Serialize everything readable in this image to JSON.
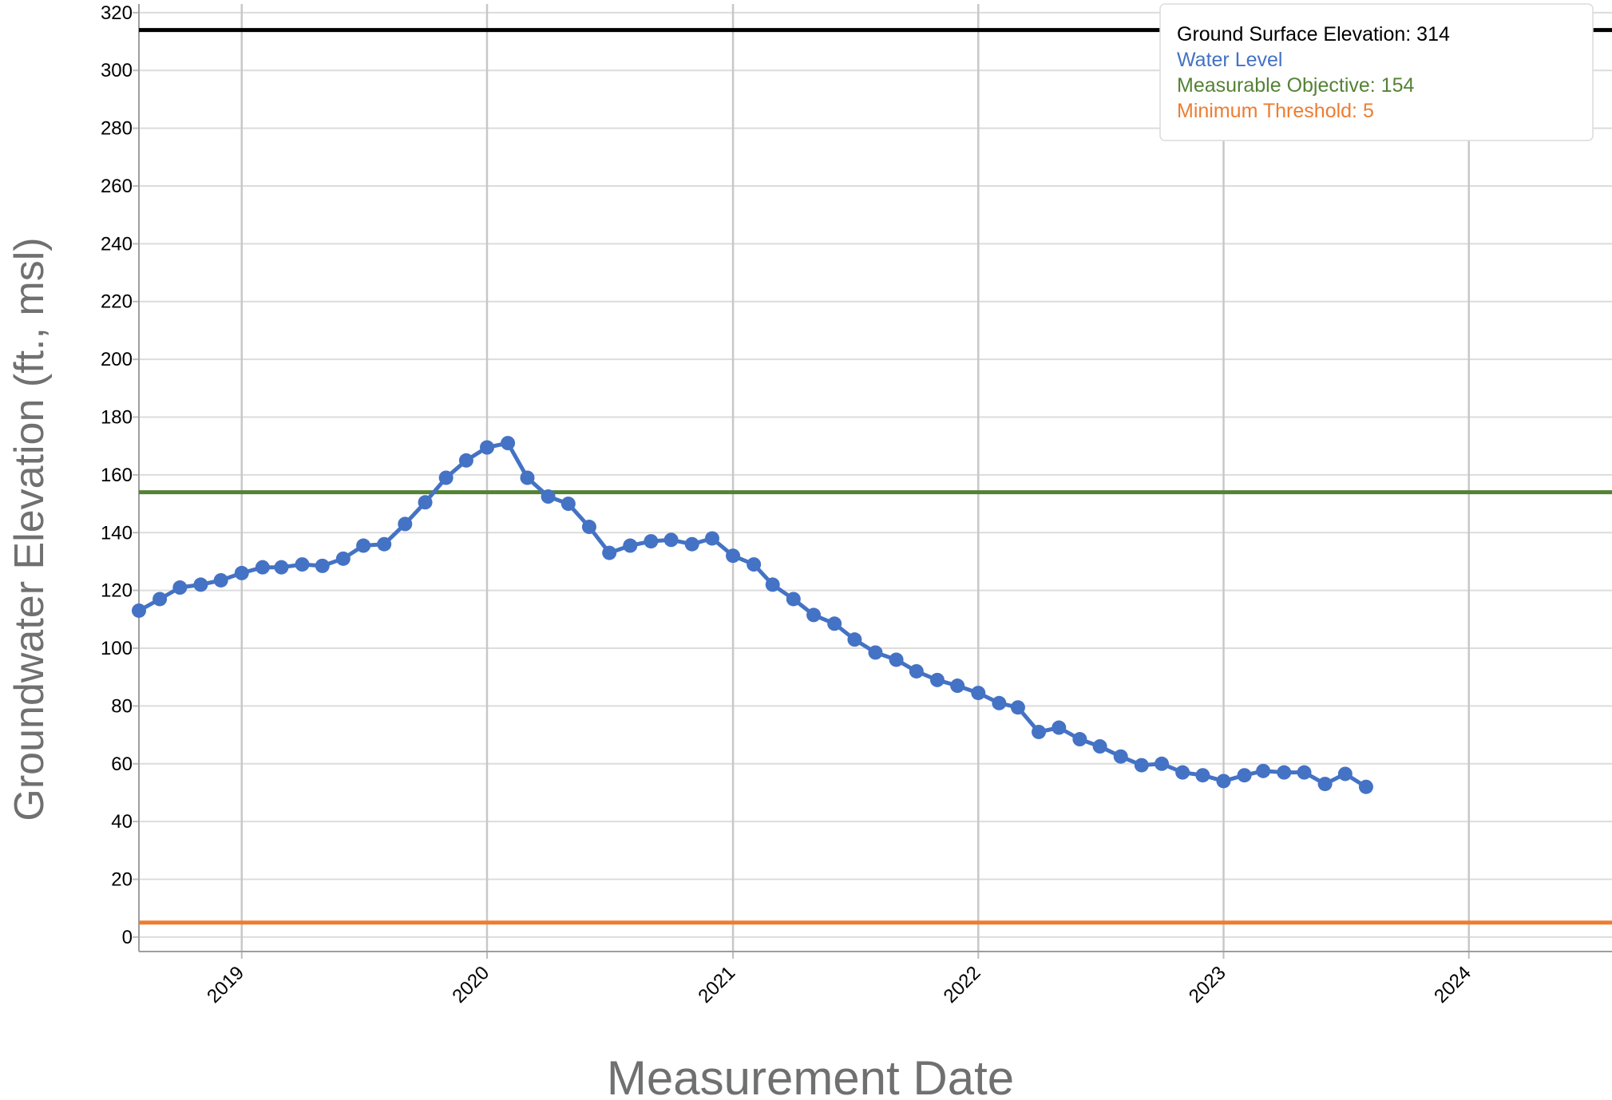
{
  "chart_data": {
    "type": "line",
    "title": "",
    "xlabel": "Measurement Date",
    "ylabel": "Groundwater Elevation (ft., msl)",
    "x_range": [
      "2018-08-01",
      "2024-08-01"
    ],
    "ylim": [
      -5,
      323
    ],
    "x_ticks": [
      {
        "date": "2019-01-01",
        "label": "2019"
      },
      {
        "date": "2020-01-01",
        "label": "2020"
      },
      {
        "date": "2021-01-01",
        "label": "2021"
      },
      {
        "date": "2022-01-01",
        "label": "2022"
      },
      {
        "date": "2023-01-01",
        "label": "2023"
      },
      {
        "date": "2024-01-01",
        "label": "2024"
      }
    ],
    "y_ticks": [
      0,
      20,
      40,
      60,
      80,
      100,
      120,
      140,
      160,
      180,
      200,
      220,
      240,
      260,
      280,
      300,
      320
    ],
    "grid": true,
    "legend_position": "top-right",
    "legend": [
      {
        "label": "Ground Surface Elevation: 314",
        "color": "#000000"
      },
      {
        "label": "Water Level",
        "color": "#4472c4"
      },
      {
        "label": "Measurable Objective: 154",
        "color": "#548235"
      },
      {
        "label": "Minimum Threshold: 5",
        "color": "#ed7d31"
      }
    ],
    "reference_lines": [
      {
        "label": "Ground Surface Elevation",
        "value": 314,
        "color": "#000000"
      },
      {
        "label": "Measurable Objective",
        "value": 154,
        "color": "#548235"
      },
      {
        "label": "Minimum Threshold",
        "value": 5,
        "color": "#ed7d31"
      }
    ],
    "series": [
      {
        "name": "Water Level",
        "color": "#4472c4",
        "points": [
          [
            "2018-08-01",
            113
          ],
          [
            "2018-09-01",
            117
          ],
          [
            "2018-10-01",
            121
          ],
          [
            "2018-11-01",
            122
          ],
          [
            "2018-12-01",
            123.5
          ],
          [
            "2019-01-01",
            126
          ],
          [
            "2019-02-01",
            128
          ],
          [
            "2019-03-01",
            128
          ],
          [
            "2019-04-01",
            129
          ],
          [
            "2019-05-01",
            128.5
          ],
          [
            "2019-06-01",
            131
          ],
          [
            "2019-07-01",
            135.5
          ],
          [
            "2019-08-01",
            136
          ],
          [
            "2019-09-01",
            143
          ],
          [
            "2019-10-01",
            150.5
          ],
          [
            "2019-11-01",
            159
          ],
          [
            "2019-12-01",
            165
          ],
          [
            "2020-01-01",
            169.5
          ],
          [
            "2020-02-01",
            171
          ],
          [
            "2020-03-01",
            159
          ],
          [
            "2020-04-01",
            152.5
          ],
          [
            "2020-05-01",
            150
          ],
          [
            "2020-06-01",
            142
          ],
          [
            "2020-07-01",
            133
          ],
          [
            "2020-08-01",
            135.5
          ],
          [
            "2020-09-01",
            137
          ],
          [
            "2020-10-01",
            137.5
          ],
          [
            "2020-11-01",
            136
          ],
          [
            "2020-12-01",
            138
          ],
          [
            "2021-01-01",
            132
          ],
          [
            "2021-02-01",
            129
          ],
          [
            "2021-03-01",
            122
          ],
          [
            "2021-04-01",
            117
          ],
          [
            "2021-05-01",
            111.5
          ],
          [
            "2021-06-01",
            108.5
          ],
          [
            "2021-07-01",
            103
          ],
          [
            "2021-08-01",
            98.5
          ],
          [
            "2021-09-01",
            96
          ],
          [
            "2021-10-01",
            92
          ],
          [
            "2021-11-01",
            89
          ],
          [
            "2021-12-01",
            87
          ],
          [
            "2022-01-01",
            84.5
          ],
          [
            "2022-02-01",
            81
          ],
          [
            "2022-03-01",
            79.5
          ],
          [
            "2022-04-01",
            71
          ],
          [
            "2022-05-01",
            72.5
          ],
          [
            "2022-06-01",
            68.5
          ],
          [
            "2022-07-01",
            66
          ],
          [
            "2022-08-01",
            62.5
          ],
          [
            "2022-09-01",
            59.5
          ],
          [
            "2022-10-01",
            60
          ],
          [
            "2022-11-01",
            57
          ],
          [
            "2022-12-01",
            56
          ],
          [
            "2023-01-01",
            54
          ],
          [
            "2023-02-01",
            56
          ],
          [
            "2023-03-01",
            57.5
          ],
          [
            "2023-04-01",
            57
          ],
          [
            "2023-05-01",
            57
          ],
          [
            "2023-06-01",
            53
          ],
          [
            "2023-07-01",
            56.5
          ],
          [
            "2023-08-01",
            52
          ]
        ]
      }
    ]
  }
}
